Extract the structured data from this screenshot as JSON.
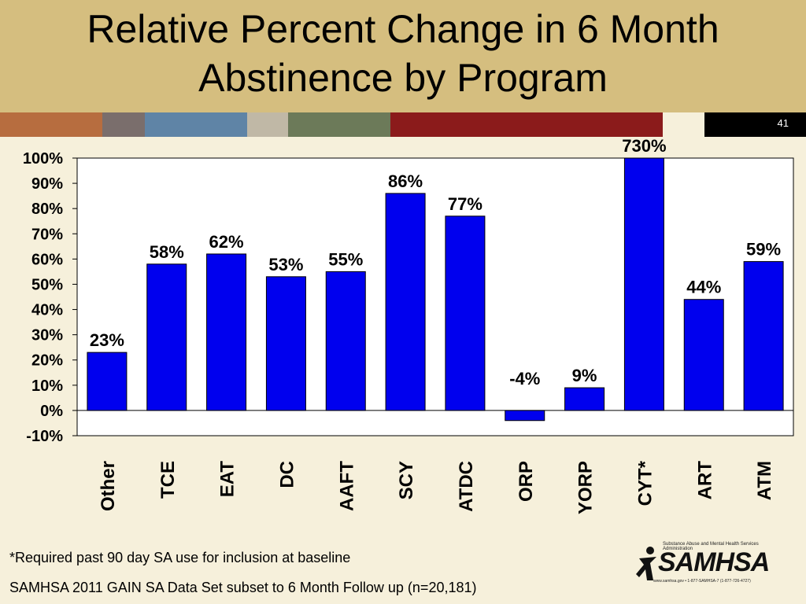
{
  "slide": {
    "title_line1": "Relative Percent Change in 6 Month",
    "title_line2": "Abstinence by Program",
    "slide_number": "41",
    "footnote1": "*Required past 90 day SA use for inclusion at baseline",
    "footnote2": "SAMHSA 2011 GAIN SA Data Set subset to 6 Month Follow up (n=20,181)",
    "logo_text": "SAMHSA",
    "logo_small": "Substance Abuse and Mental Health Services Administration",
    "logo_url": "www.samhsa.gov • 1-877-SAMHSA-7 (1-877-726-4727)"
  },
  "colors": {
    "title_band": "#d5be7f",
    "background": "#f6f0db",
    "bar": "#0000ee",
    "strip": [
      "#b76d3f",
      "#7a6e6c",
      "#5f84a6",
      "#c0b8a6",
      "#6c7a59",
      "#8b1b1b",
      "#f6f0db",
      "#000000"
    ]
  },
  "chart_data": {
    "type": "bar",
    "categories": [
      "Other",
      "TCE",
      "EAT",
      "DC",
      "AAFT",
      "SCY",
      "ATDC",
      "ORP",
      "YORP",
      "CYT*",
      "ART",
      "ATM"
    ],
    "values": [
      23,
      58,
      62,
      53,
      55,
      86,
      77,
      -4,
      9,
      730,
      44,
      59
    ],
    "data_labels": [
      "23%",
      "58%",
      "62%",
      "53%",
      "55%",
      "86%",
      "77%",
      "-4%",
      "9%",
      "730%",
      "44%",
      "59%"
    ],
    "ylim": [
      -10,
      100
    ],
    "yticks": [
      100,
      90,
      80,
      70,
      60,
      50,
      40,
      30,
      20,
      10,
      0,
      -10
    ],
    "ytick_labels": [
      "100%",
      "90%",
      "80%",
      "70%",
      "60%",
      "50%",
      "40%",
      "30%",
      "20%",
      "10%",
      "0%",
      "-10%"
    ],
    "title": "",
    "xlabel": "",
    "ylabel": "",
    "grid": false,
    "legend": "none"
  }
}
